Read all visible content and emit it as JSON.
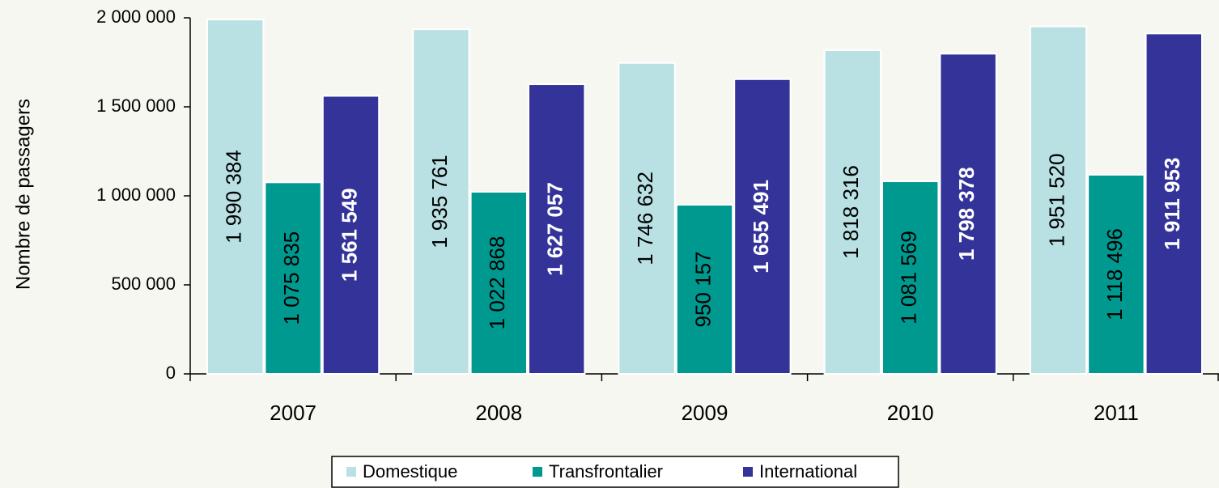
{
  "chart_data": {
    "type": "bar",
    "y_label": "Nombre de passagers",
    "categories": [
      "2007",
      "2008",
      "2009",
      "2010",
      "2011"
    ],
    "series": [
      {
        "name": "Domestique",
        "color": "#b9e0e3",
        "label_color": "#000000",
        "label_weight": "normal",
        "values": [
          1990384,
          1935761,
          1746632,
          1818316,
          1951520
        ],
        "value_labels": [
          "1 990 384",
          "1 935 761",
          "1 746 632",
          "1 818 316",
          "1 951 520"
        ]
      },
      {
        "name": "Transfrontalier",
        "color": "#009990",
        "label_color": "#000000",
        "label_weight": "normal",
        "values": [
          1075835,
          1022868,
          950157,
          1081569,
          1118496
        ],
        "value_labels": [
          "1 075 835",
          "1 022 868",
          "950 157",
          "1 081 569",
          "1 118 496"
        ]
      },
      {
        "name": "International",
        "color": "#333399",
        "label_color": "#ffffff",
        "label_weight": "bold",
        "values": [
          1561549,
          1627057,
          1655491,
          1798378,
          1911953
        ],
        "value_labels": [
          "1 561 549",
          "1 627 057",
          "1 655 491",
          "1 798 378",
          "1 911 953"
        ]
      }
    ],
    "ylim": [
      0,
      2000000
    ],
    "yticks": [
      0,
      {
        "value": 500000,
        "label": "500 000"
      },
      {
        "value": 1000000,
        "label": "1 000 000"
      },
      {
        "value": 1500000,
        "label": "1 500 000"
      },
      {
        "value": 2000000,
        "label": "2 000 000"
      }
    ],
    "grid": false,
    "legend": "bottom"
  }
}
